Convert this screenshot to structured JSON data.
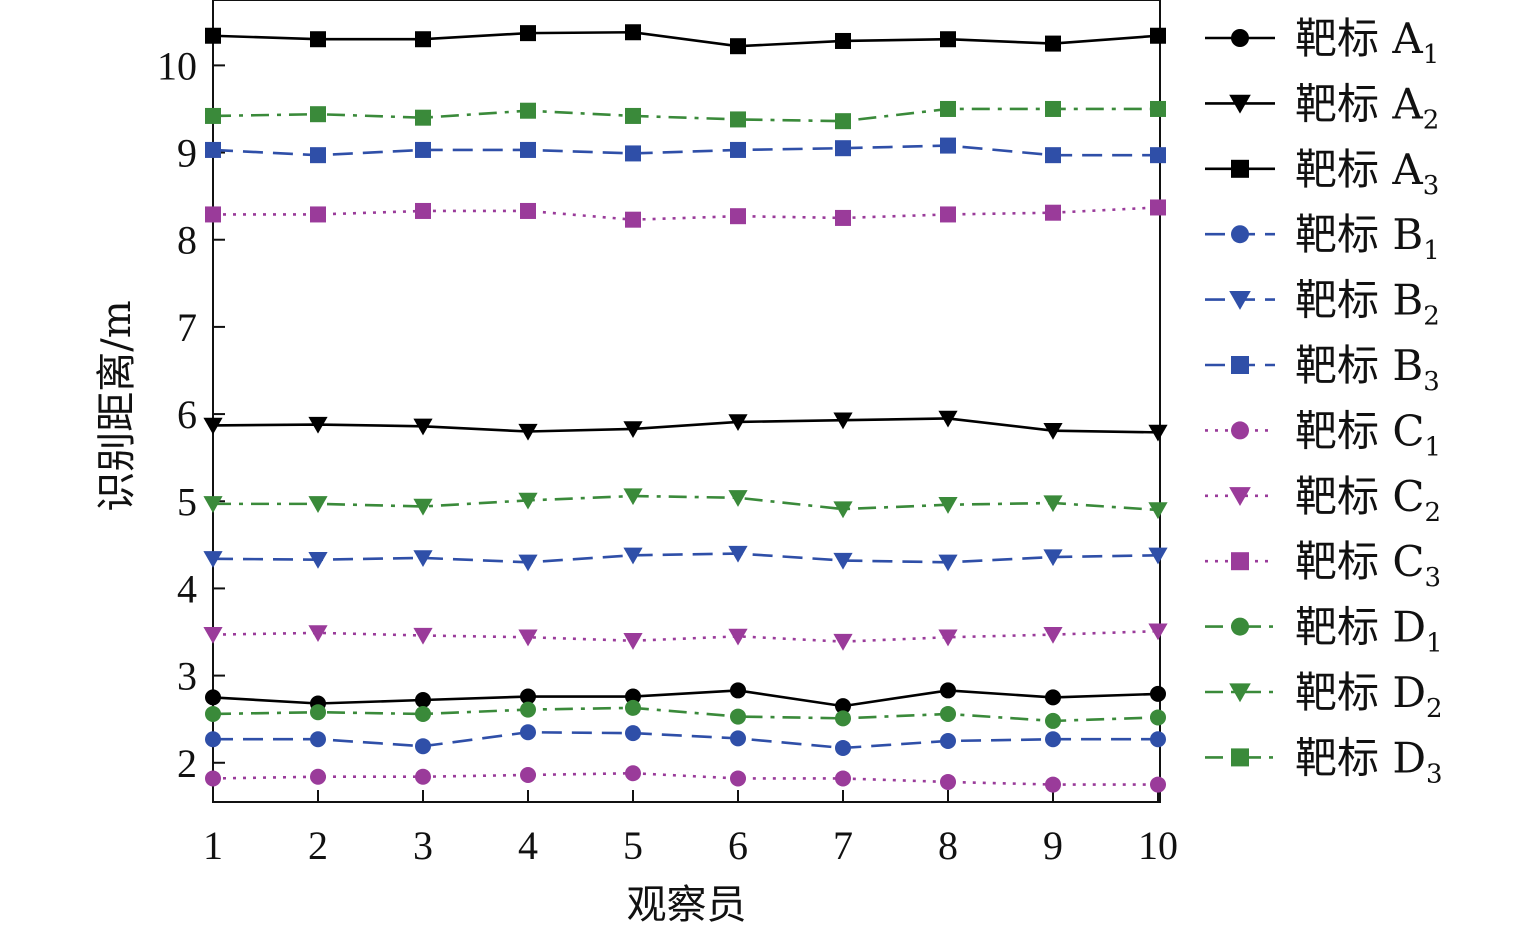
{
  "chart_data": {
    "type": "line",
    "xlabel": "观察员",
    "ylabel": "识别距离/m",
    "x": [
      1,
      2,
      3,
      4,
      5,
      6,
      7,
      8,
      9,
      10
    ],
    "x_tick_labels": [
      "1",
      "2",
      "3",
      "4",
      "5",
      "6",
      "7",
      "8",
      "9",
      "10"
    ],
    "y_tick_labels": [
      "2",
      "3",
      "4",
      "5",
      "6",
      "7",
      "8",
      "9",
      "10"
    ],
    "y_ticks": [
      2,
      3,
      4,
      5,
      6,
      7,
      8,
      9,
      10
    ],
    "xlim": [
      1,
      10
    ],
    "ylim": [
      1.55,
      10.75
    ],
    "grid": false,
    "legend_position": "right",
    "series": [
      {
        "name": "靶标 A",
        "sub": "1",
        "marker": "circle",
        "color": "#000000",
        "dash": "solid",
        "values": [
          2.75,
          2.68,
          2.72,
          2.76,
          2.76,
          2.83,
          2.65,
          2.83,
          2.75,
          2.79
        ]
      },
      {
        "name": "靶标 A",
        "sub": "2",
        "marker": "triangle-down",
        "color": "#000000",
        "dash": "solid",
        "values": [
          5.87,
          5.88,
          5.86,
          5.8,
          5.83,
          5.91,
          5.93,
          5.95,
          5.81,
          5.79
        ]
      },
      {
        "name": "靶标 A",
        "sub": "3",
        "marker": "square",
        "color": "#000000",
        "dash": "solid",
        "values": [
          10.34,
          10.3,
          10.3,
          10.37,
          10.38,
          10.22,
          10.28,
          10.3,
          10.25,
          10.34
        ]
      },
      {
        "name": "靶标 B",
        "sub": "1",
        "marker": "circle",
        "color": "#2f4fa8",
        "dash": "dash",
        "values": [
          2.27,
          2.27,
          2.19,
          2.35,
          2.34,
          2.28,
          2.17,
          2.25,
          2.27,
          2.27
        ]
      },
      {
        "name": "靶标 B",
        "sub": "2",
        "marker": "triangle-down",
        "color": "#2f4fa8",
        "dash": "dash",
        "values": [
          4.34,
          4.33,
          4.35,
          4.3,
          4.38,
          4.4,
          4.32,
          4.3,
          4.36,
          4.38
        ]
      },
      {
        "name": "靶标 B",
        "sub": "3",
        "marker": "square",
        "color": "#2f4fa8",
        "dash": "dash",
        "values": [
          9.03,
          8.97,
          9.03,
          9.03,
          8.99,
          9.03,
          9.05,
          9.08,
          8.97,
          8.97
        ]
      },
      {
        "name": "靶标 C",
        "sub": "1",
        "marker": "circle",
        "color": "#9a3b9a",
        "dash": "dot",
        "values": [
          1.82,
          1.84,
          1.84,
          1.86,
          1.88,
          1.82,
          1.82,
          1.78,
          1.75,
          1.75
        ]
      },
      {
        "name": "靶标 C",
        "sub": "2",
        "marker": "triangle-down",
        "color": "#9a3b9a",
        "dash": "dot",
        "values": [
          3.47,
          3.49,
          3.46,
          3.44,
          3.4,
          3.45,
          3.39,
          3.44,
          3.47,
          3.51
        ]
      },
      {
        "name": "靶标 C",
        "sub": "3",
        "marker": "square",
        "color": "#9a3b9a",
        "dash": "dot",
        "values": [
          8.29,
          8.29,
          8.33,
          8.33,
          8.23,
          8.27,
          8.25,
          8.29,
          8.31,
          8.37
        ]
      },
      {
        "name": "靶标 D",
        "sub": "1",
        "marker": "circle",
        "color": "#3a8a3a",
        "dash": "dashdot",
        "values": [
          2.56,
          2.58,
          2.56,
          2.61,
          2.63,
          2.53,
          2.51,
          2.56,
          2.48,
          2.52
        ]
      },
      {
        "name": "靶标 D",
        "sub": "2",
        "marker": "triangle-down",
        "color": "#3a8a3a",
        "dash": "dashdot",
        "values": [
          4.97,
          4.97,
          4.94,
          5.01,
          5.06,
          5.04,
          4.91,
          4.96,
          4.98,
          4.9
        ]
      },
      {
        "name": "靶标 D",
        "sub": "3",
        "marker": "square",
        "color": "#3a8a3a",
        "dash": "dashdot",
        "values": [
          9.42,
          9.44,
          9.4,
          9.48,
          9.42,
          9.38,
          9.36,
          9.5,
          9.5,
          9.5
        ]
      }
    ]
  }
}
